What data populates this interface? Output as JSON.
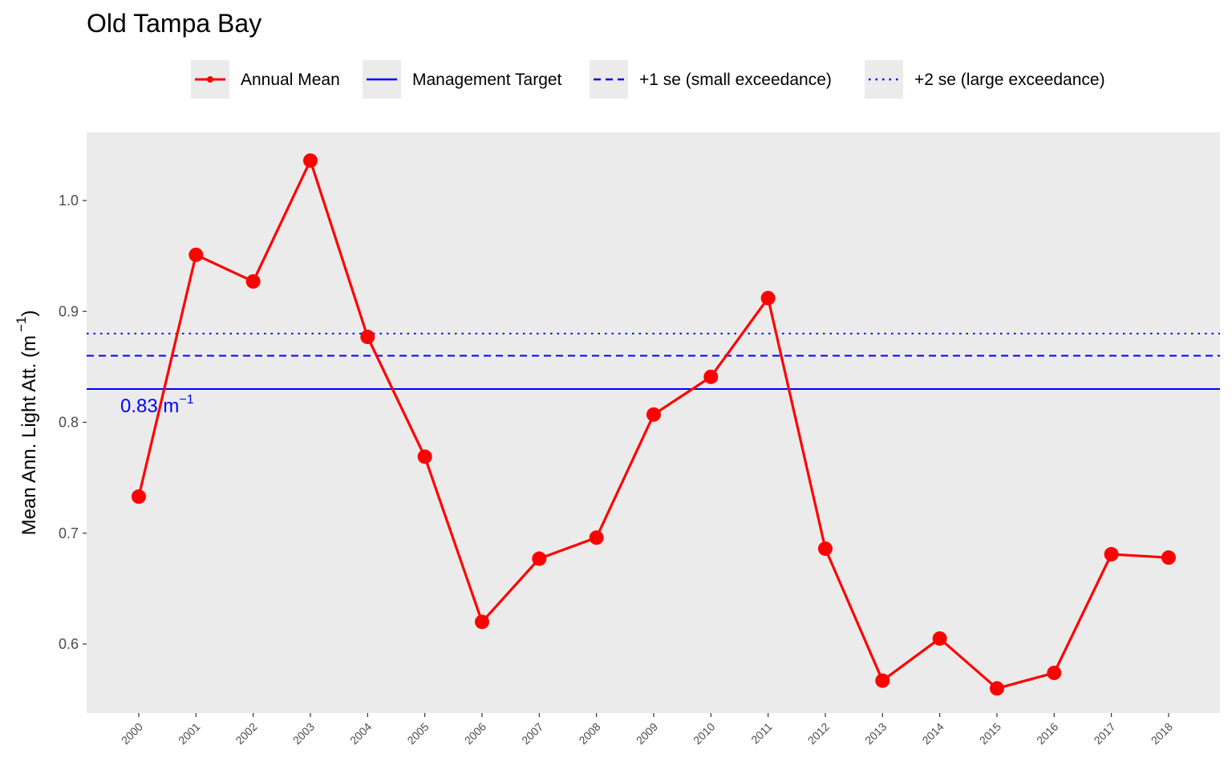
{
  "chart_data": {
    "type": "line",
    "title": "Old Tampa Bay",
    "ylabel": "Mean Ann. Light Att. (m",
    "ylabel_superscript": "−1",
    "ylabel_close": ")",
    "xlabel": "",
    "x": [
      "2000",
      "2001",
      "2002",
      "2003",
      "2004",
      "2005",
      "2006",
      "2007",
      "2008",
      "2009",
      "2010",
      "2011",
      "2012",
      "2013",
      "2014",
      "2015",
      "2016",
      "2017",
      "2018"
    ],
    "series": [
      {
        "name": "Annual Mean",
        "color": "#ff0000",
        "values": [
          0.733,
          0.951,
          0.927,
          1.036,
          0.877,
          0.769,
          0.62,
          0.677,
          0.696,
          0.807,
          0.841,
          0.912,
          0.686,
          0.567,
          0.605,
          0.56,
          0.574,
          0.681,
          0.678
        ]
      }
    ],
    "reference_lines": [
      {
        "name": "Management Target",
        "value": 0.83,
        "color": "#0000ff",
        "style": "solid"
      },
      {
        "name": "+1 se (small exceedance)",
        "value": 0.86,
        "color": "#0000ff",
        "style": "dashed"
      },
      {
        "name": "+2 se (large exceedance)",
        "value": 0.88,
        "color": "#0000ff",
        "style": "dotted"
      }
    ],
    "annotation": {
      "text": "0.83 m",
      "superscript": "−1",
      "color": "#0000ff"
    },
    "y_ticks": [
      "0.6",
      "0.7",
      "0.8",
      "0.9",
      "1.0"
    ],
    "ylim": [
      0.535,
      1.06
    ],
    "grid": false,
    "legend_position": "top",
    "panel_background": "#ebebeb"
  }
}
